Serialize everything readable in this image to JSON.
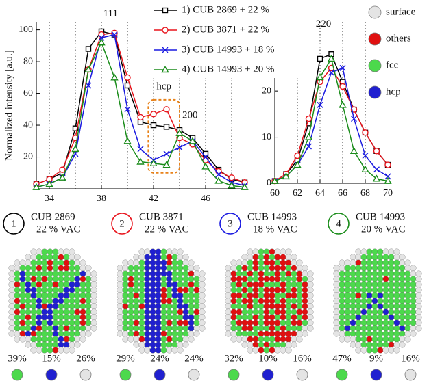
{
  "chart_data": [
    {
      "type": "line",
      "ylabel": "Normalized intensity [a.u.]",
      "x": [
        33,
        34,
        35,
        36,
        37,
        38,
        39,
        40,
        41,
        42,
        43,
        44,
        45,
        46,
        47,
        48,
        49
      ],
      "series": [
        {
          "name": "1) CUB 2869 + 22 %",
          "color": "#000000",
          "marker": "square",
          "values": [
            3,
            6,
            10,
            38,
            88,
            99,
            97,
            65,
            42,
            40,
            39,
            37,
            32,
            22,
            12,
            6,
            4
          ]
        },
        {
          "name": "2) CUB 3871 + 22 %",
          "color": "#e8141c",
          "marker": "circle",
          "values": [
            3,
            6,
            12,
            32,
            75,
            97,
            98,
            70,
            45,
            47,
            50,
            32,
            28,
            18,
            11,
            7,
            4
          ]
        },
        {
          "name": "3) CUB 14993 + 18 %",
          "color": "#1a1ae0",
          "marker": "cross",
          "values": [
            1,
            3,
            7,
            22,
            65,
            95,
            97,
            50,
            25,
            18,
            22,
            26,
            30,
            20,
            9,
            4,
            2
          ]
        },
        {
          "name": "4) CUB 14993 + 20 %",
          "color": "#1a8c1a",
          "marker": "triangle",
          "values": [
            1,
            3,
            7,
            25,
            75,
            92,
            70,
            30,
            17,
            16,
            15,
            35,
            30,
            14,
            5,
            2,
            1
          ]
        }
      ],
      "xlim": [
        33,
        49
      ],
      "ylim": [
        0,
        105
      ],
      "xticks": [
        34,
        38,
        42,
        46
      ],
      "yticks": [
        20,
        40,
        60,
        80,
        100
      ],
      "x_grid": [
        34,
        36,
        38,
        40,
        42,
        44,
        46,
        48
      ],
      "annotations": [
        {
          "text": "111",
          "x": 38.7,
          "y": 110
        },
        {
          "text": "hcp",
          "x": 42.8,
          "y": 64
        },
        {
          "text": "200",
          "x": 44.8,
          "y": 46
        }
      ],
      "highlight": {
        "x": [
          41.6,
          44
        ],
        "y": [
          10,
          56
        ],
        "color": "#e8821a"
      }
    },
    {
      "type": "line",
      "x": [
        60,
        61,
        62,
        63,
        64,
        65,
        66,
        67,
        68,
        69,
        70
      ],
      "series": [
        {
          "color": "#000000",
          "marker": "square",
          "values": [
            0.5,
            2,
            5,
            13,
            27,
            28,
            22,
            16,
            11,
            7,
            4
          ]
        },
        {
          "color": "#e8141c",
          "marker": "circle",
          "values": [
            0.5,
            2,
            6,
            14,
            22,
            25,
            21,
            16,
            11,
            7,
            4
          ]
        },
        {
          "color": "#1a1ae0",
          "marker": "cross",
          "values": [
            0.5,
            1.5,
            4,
            8,
            17,
            24,
            25,
            14,
            6,
            3,
            1.5
          ]
        },
        {
          "color": "#1a8c1a",
          "marker": "triangle",
          "values": [
            0.5,
            1.5,
            4,
            10,
            23,
            27,
            17,
            7,
            3,
            1,
            0.5
          ]
        }
      ],
      "xlim": [
        60,
        70
      ],
      "ylim": [
        0,
        35
      ],
      "xticks": [
        60,
        62,
        64,
        66,
        68,
        70
      ],
      "yticks": [
        0,
        10,
        20
      ],
      "x_grid": [
        62,
        64,
        66,
        68
      ],
      "annotations": [
        {
          "text": "220",
          "x": 64.3,
          "y": 34.5
        }
      ]
    }
  ],
  "structure_legend": [
    {
      "label": "surface",
      "color": "#e4e4e4"
    },
    {
      "label": "others",
      "color": "#e01010"
    },
    {
      "label": "fcc",
      "color": "#4cd94c"
    },
    {
      "label": "hcp",
      "color": "#2020d0"
    }
  ],
  "panels": [
    {
      "number": "1",
      "name": "CUB 2869",
      "vacancy": "22 % VAC",
      "color": "#000000",
      "fractions": [
        "39%",
        "15%",
        "26%"
      ]
    },
    {
      "number": "2",
      "name": "CUB 3871",
      "vacancy": "22 % VAC",
      "color": "#e8141c",
      "fractions": [
        "29%",
        "24%",
        "24%"
      ]
    },
    {
      "number": "3",
      "name": "CUB 14993",
      "vacancy": "18 % VAC",
      "color": "#1a1ae0",
      "fractions": [
        "32%",
        "10%",
        "16%"
      ]
    },
    {
      "number": "4",
      "name": "CUB 14993",
      "vacancy": "20 % VAC",
      "color": "#1a8c1a",
      "fractions": [
        "47%",
        "9%",
        "16%"
      ]
    }
  ]
}
